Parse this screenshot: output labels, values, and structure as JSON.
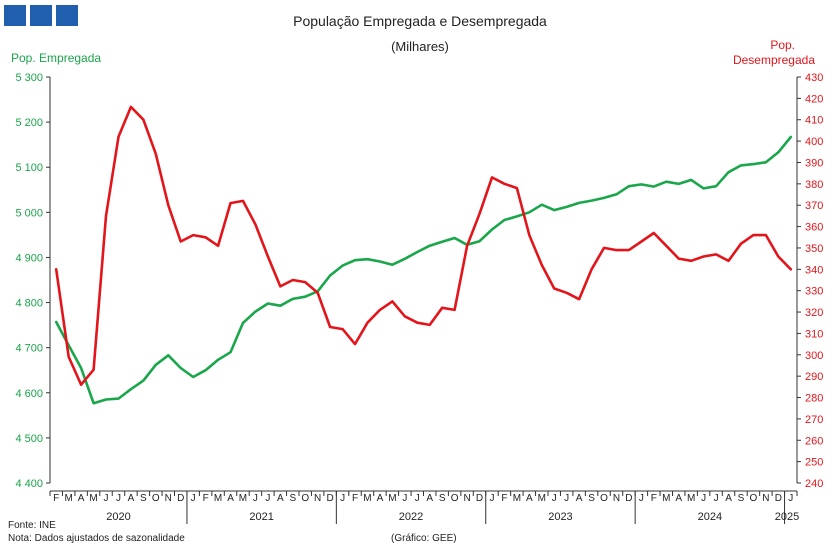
{
  "chart_data": {
    "type": "line",
    "title": "População  Empregada  e Desempregada",
    "subtitle": "(Milhares)",
    "left_axis_label": "Pop. Empregada",
    "right_axis_label_line1": "Pop.",
    "right_axis_label_line2": "Desempregada",
    "ylim_left": [
      4400,
      5300
    ],
    "ylim_right": [
      240,
      430
    ],
    "left_ticks": [
      "5 300",
      "5 200",
      "5 100",
      "5 000",
      "4 900",
      "4 800",
      "4 700",
      "4 600",
      "4 500",
      "4 400"
    ],
    "right_ticks": [
      "430",
      "420",
      "410",
      "400",
      "390",
      "380",
      "370",
      "360",
      "350",
      "340",
      "330",
      "320",
      "310",
      "300",
      "290",
      "280",
      "270",
      "260",
      "250",
      "240"
    ],
    "grid": false,
    "x_month_labels": [
      "F",
      "M",
      "A",
      "M",
      "J",
      "J",
      "A",
      "S",
      "O",
      "N",
      "D",
      "J",
      "F",
      "M",
      "A",
      "M",
      "J",
      "J",
      "A",
      "S",
      "O",
      "N",
      "D",
      "J",
      "F",
      "M",
      "A",
      "M",
      "J",
      "J",
      "A",
      "S",
      "O",
      "N",
      "D",
      "J",
      "F",
      "M",
      "A",
      "M",
      "J",
      "J",
      "A",
      "S",
      "O",
      "N",
      "D",
      "J",
      "F",
      "M",
      "A",
      "M",
      "J",
      "J",
      "A",
      "S",
      "O",
      "N",
      "D",
      "J"
    ],
    "x_year_labels": [
      "2020",
      "2021",
      "2022",
      "2023",
      "2024",
      "2025"
    ],
    "series": [
      {
        "name": "Pop. Empregada",
        "color": "#1aa64b",
        "axis": "left",
        "values": [
          4757,
          4705,
          4655,
          4577,
          4585,
          4587,
          4608,
          4627,
          4662,
          4683,
          4655,
          4635,
          4650,
          4673,
          4690,
          4755,
          4780,
          4798,
          4793,
          4808,
          4813,
          4825,
          4860,
          4882,
          4894,
          4896,
          4891,
          4884,
          4897,
          4912,
          4926,
          4935,
          4943,
          4928,
          4936,
          4962,
          4983,
          4991,
          5000,
          5017,
          5005,
          5012,
          5021,
          5026,
          5032,
          5040,
          5058,
          5062,
          5057,
          5068,
          5063,
          5072,
          5053,
          5058,
          5089,
          5104,
          5107,
          5111,
          5133,
          5167
        ]
      },
      {
        "name": "Pop. Desempregada",
        "color": "#e3151b",
        "axis": "right",
        "values": [
          340,
          299,
          286,
          293,
          365,
          402,
          416,
          410,
          394,
          370,
          353,
          356,
          355,
          351,
          371,
          372,
          361,
          346,
          332,
          335,
          334,
          329,
          313,
          312,
          305,
          315,
          321,
          325,
          318,
          315,
          314,
          322,
          321,
          351,
          366,
          383,
          380,
          378,
          356,
          342,
          331,
          329,
          326,
          340,
          350,
          349,
          349,
          353,
          357,
          351,
          345,
          344,
          346,
          347,
          344,
          352,
          356,
          356,
          346,
          340
        ]
      }
    ],
    "notes": {
      "source": "Fonte: INE",
      "note": "Nota: Dados ajustados de sazonalidade",
      "credit": "(Gráfico: GEE)"
    }
  }
}
